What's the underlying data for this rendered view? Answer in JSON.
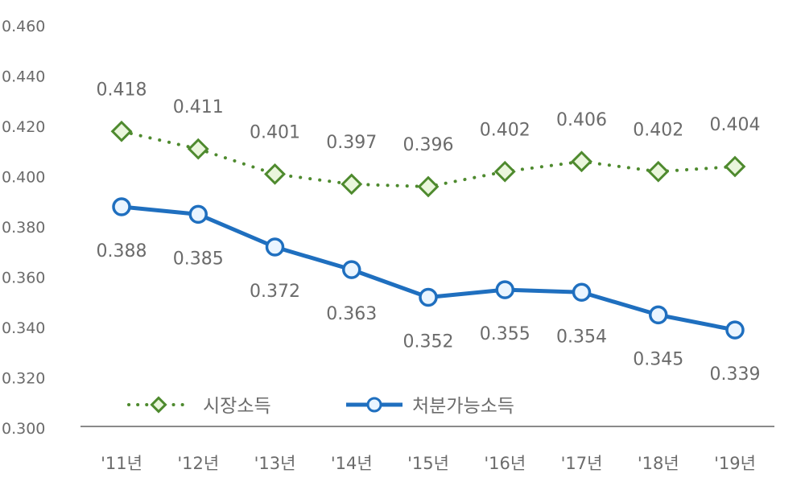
{
  "chart_data": {
    "type": "line",
    "categories": [
      "'11년",
      "'12년",
      "'13년",
      "'14년",
      "'15년",
      "'16년",
      "'17년",
      "'18년",
      "'19년"
    ],
    "ylim": [
      0.3,
      0.46
    ],
    "yticks": [
      "0.300",
      "0.320",
      "0.340",
      "0.360",
      "0.380",
      "0.400",
      "0.420",
      "0.440",
      "0.460"
    ],
    "grid": false,
    "legend_position": "bottom-inside",
    "series": [
      {
        "name": "시장소득",
        "values": [
          0.418,
          0.411,
          0.401,
          0.397,
          0.396,
          0.402,
          0.406,
          0.402,
          0.404
        ],
        "color": "#4e8a2e",
        "marker_fill": "#eaf6dc",
        "marker": "diamond",
        "line_style": "dotted",
        "label_position": "above"
      },
      {
        "name": "처분가능소득",
        "values": [
          0.388,
          0.385,
          0.372,
          0.363,
          0.352,
          0.355,
          0.354,
          0.345,
          0.339
        ],
        "color": "#1f6fbf",
        "marker_fill": "#eaf5ff",
        "marker": "circle",
        "line_style": "solid",
        "label_position": "below"
      }
    ]
  }
}
